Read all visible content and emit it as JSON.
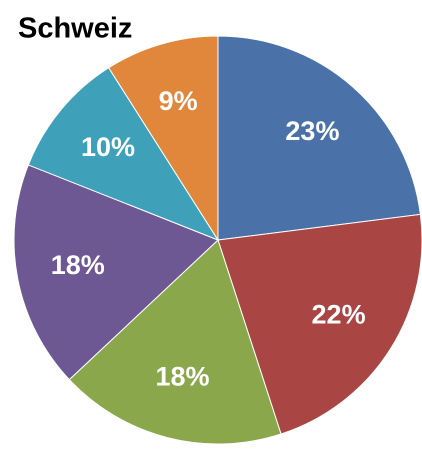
{
  "chart_data": {
    "type": "pie",
    "title": "Schweiz",
    "values": [
      23,
      22,
      18,
      18,
      10,
      9
    ],
    "value_labels": [
      "23%",
      "22%",
      "18%",
      "18%",
      "10%",
      "9%"
    ],
    "colors": [
      "#4a72a8",
      "#a94543",
      "#8aa84b",
      "#6e5893",
      "#3fa1b9",
      "#e0873b"
    ]
  }
}
